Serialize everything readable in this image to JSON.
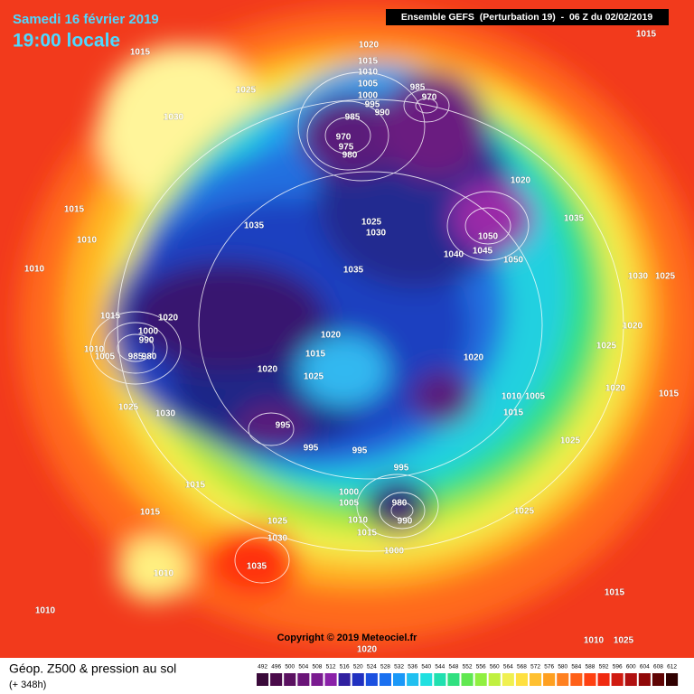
{
  "header": {
    "date": "Samedi 16 février 2019",
    "time": "19:00 locale",
    "run": "Ensemble GEFS  (Perturbation 19)  -  06 Z du 02/02/2019"
  },
  "pressure_labels": [
    "1015",
    "1020",
    "1015",
    "1025",
    "1030",
    "1015",
    "1010",
    "1005",
    "1000",
    "995",
    "990",
    "985",
    "970",
    "985",
    "970",
    "975",
    "980",
    "1020",
    "1035",
    "1015",
    "1010",
    "1035",
    "1025",
    "1030",
    "1050",
    "1045",
    "1040",
    "1050",
    "1010",
    "1035",
    "1030",
    "1025",
    "1015",
    "1020",
    "1000",
    "990",
    "1010",
    "1005",
    "985",
    "980",
    "1020",
    "1020",
    "1025",
    "1015",
    "1020",
    "1020",
    "1025",
    "1010",
    "1005",
    "1020",
    "1015",
    "1025",
    "1030",
    "1015",
    "995",
    "995",
    "995",
    "1025",
    "995",
    "1015",
    "1000",
    "1005",
    "980",
    "1015",
    "1010",
    "990",
    "1025",
    "1025",
    "1015",
    "1030",
    "1035",
    "1000",
    "1010",
    "1010",
    "1015",
    "1010",
    "1025",
    "1020"
  ],
  "copyright": "Copyright © 2019 Meteociel.fr",
  "footer": {
    "title": "Géop. Z500 & pression au sol",
    "lead": "(+ 348h)"
  },
  "scale": [
    "492",
    "496",
    "500",
    "504",
    "508",
    "512",
    "516",
    "520",
    "524",
    "528",
    "532",
    "536",
    "540",
    "544",
    "548",
    "552",
    "556",
    "560",
    "564",
    "568",
    "572",
    "576",
    "580",
    "584",
    "588",
    "592",
    "596",
    "600",
    "604",
    "608",
    "612"
  ]
}
